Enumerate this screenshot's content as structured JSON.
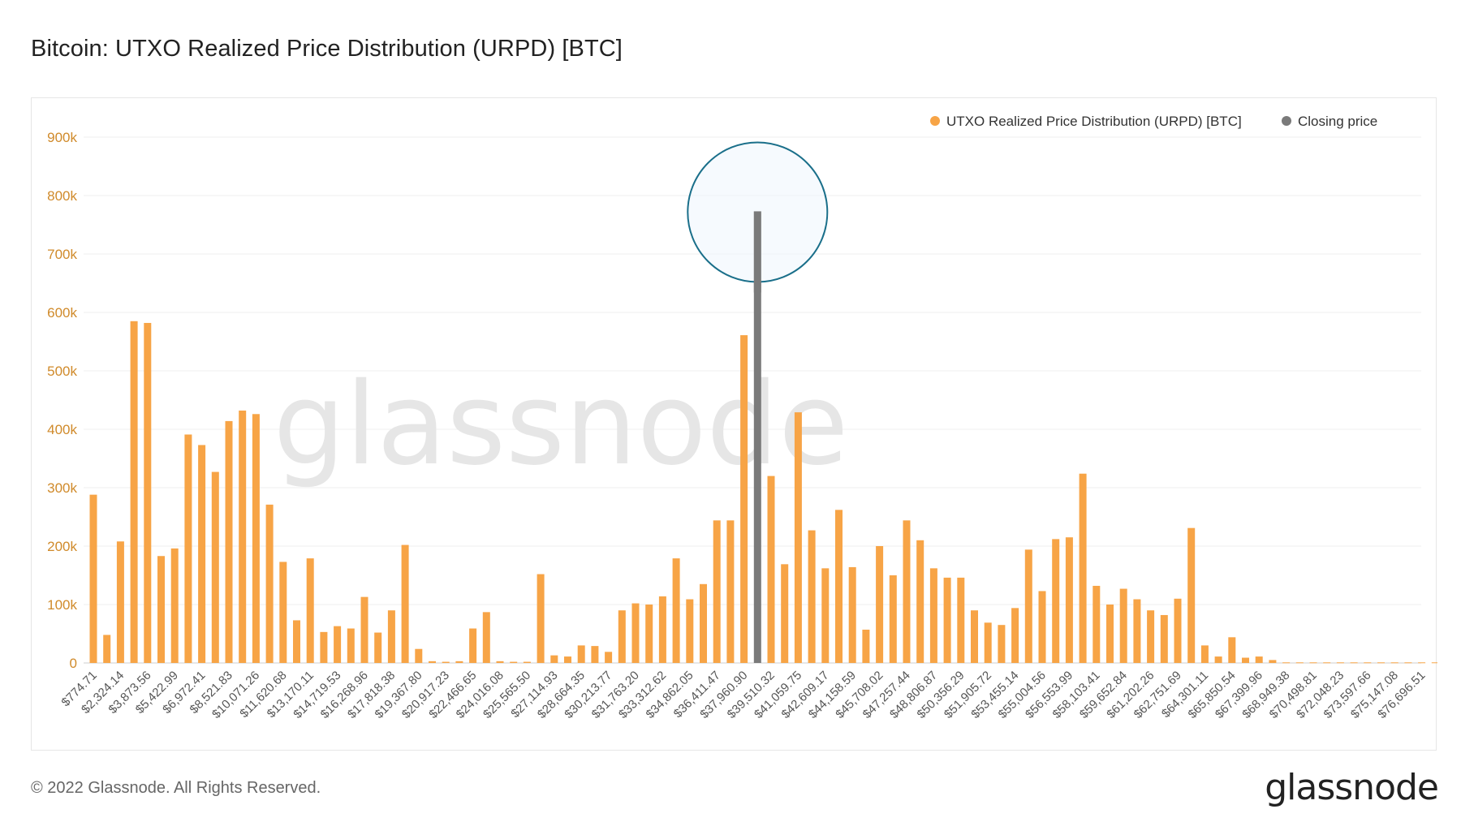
{
  "header": {
    "title": "Bitcoin: UTXO Realized Price Distribution (URPD) [BTC]"
  },
  "footer": {
    "copyright": "© 2022 Glassnode. All Rights Reserved.",
    "brand": "glassnode"
  },
  "watermark": "glassnode",
  "colors": {
    "bar": "#f7a446",
    "closing": "#7a7a7a",
    "circle": "#1a6f8a",
    "circle_fill": "#eef5fd"
  },
  "chart_data": {
    "type": "bar",
    "yticks": [
      "0",
      "100k",
      "200k",
      "300k",
      "400k",
      "500k",
      "600k",
      "700k",
      "800k",
      "900k"
    ],
    "ylim": [
      0,
      900000
    ],
    "grid": true,
    "legend_placement": "top-right",
    "series": [
      {
        "name": "UTXO Realized Price Distribution (URPD) [BTC]",
        "values": [
          288000,
          48000,
          208000,
          585000,
          582000,
          183000,
          196000,
          391000,
          373000,
          327000,
          414000,
          432000,
          426000,
          271000,
          173000,
          73000,
          179000,
          53000,
          63000,
          59000,
          113000,
          52000,
          90000,
          202000,
          24000,
          3000,
          2000,
          3000,
          59000,
          87000,
          3000,
          2000,
          2000,
          152000,
          13000,
          11000,
          30000,
          29000,
          19000,
          90000,
          102000,
          100000,
          114000,
          179000,
          109000,
          135000,
          244000,
          244000,
          561000,
          0,
          320000,
          169000,
          429000,
          227000,
          162000,
          262000,
          164000,
          57000,
          200000,
          150000,
          244000,
          210000,
          162000,
          146000,
          146000,
          90000,
          69000,
          65000,
          94000,
          194000,
          123000,
          212000,
          215000,
          324000,
          132000,
          100000,
          127000,
          109000,
          90000,
          82000,
          110000,
          231000,
          30000,
          11000,
          44000,
          9000,
          11000,
          5000,
          1000,
          1000,
          1000,
          1000,
          1000,
          1000,
          1000,
          1000,
          1000,
          1000,
          1000,
          1000,
          1000
        ]
      },
      {
        "name": "Closing price",
        "index": 49,
        "value": 773000
      }
    ],
    "xticks": [
      {
        "i": 0,
        "label": "$774.71"
      },
      {
        "i": 2,
        "label": "$2,324.14"
      },
      {
        "i": 4,
        "label": "$3,873.56"
      },
      {
        "i": 6,
        "label": "$5,422.99"
      },
      {
        "i": 8,
        "label": "$6,972.41"
      },
      {
        "i": 10,
        "label": "$8,521.83"
      },
      {
        "i": 12,
        "label": "$10,071.26"
      },
      {
        "i": 14,
        "label": "$11,620.68"
      },
      {
        "i": 16,
        "label": "$13,170.11"
      },
      {
        "i": 18,
        "label": "$14,719.53"
      },
      {
        "i": 20,
        "label": "$16,268.96"
      },
      {
        "i": 22,
        "label": "$17,818.38"
      },
      {
        "i": 24,
        "label": "$19,367.80"
      },
      {
        "i": 26,
        "label": "$20,917.23"
      },
      {
        "i": 28,
        "label": "$22,466.65"
      },
      {
        "i": 30,
        "label": "$24,016.08"
      },
      {
        "i": 32,
        "label": "$25,565.50"
      },
      {
        "i": 34,
        "label": "$27,114.93"
      },
      {
        "i": 36,
        "label": "$28,664.35"
      },
      {
        "i": 38,
        "label": "$30,213.77"
      },
      {
        "i": 40,
        "label": "$31,763.20"
      },
      {
        "i": 42,
        "label": "$33,312.62"
      },
      {
        "i": 44,
        "label": "$34,862.05"
      },
      {
        "i": 46,
        "label": "$36,411.47"
      },
      {
        "i": 48,
        "label": "$37,960.90"
      },
      {
        "i": 50,
        "label": "$39,510.32"
      },
      {
        "i": 52,
        "label": "$41,059.75"
      },
      {
        "i": 54,
        "label": "$42,609.17"
      },
      {
        "i": 56,
        "label": "$44,158.59"
      },
      {
        "i": 58,
        "label": "$45,708.02"
      },
      {
        "i": 60,
        "label": "$47,257.44"
      },
      {
        "i": 62,
        "label": "$48,806.87"
      },
      {
        "i": 64,
        "label": "$50,356.29"
      },
      {
        "i": 66,
        "label": "$51,905.72"
      },
      {
        "i": 68,
        "label": "$53,455.14"
      },
      {
        "i": 70,
        "label": "$55,004.56"
      },
      {
        "i": 72,
        "label": "$56,553.99"
      },
      {
        "i": 74,
        "label": "$58,103.41"
      },
      {
        "i": 76,
        "label": "$59,652.84"
      },
      {
        "i": 78,
        "label": "$61,202.26"
      },
      {
        "i": 80,
        "label": "$62,751.69"
      },
      {
        "i": 82,
        "label": "$64,301.11"
      },
      {
        "i": 84,
        "label": "$65,850.54"
      },
      {
        "i": 86,
        "label": "$67,399.96"
      },
      {
        "i": 88,
        "label": "$68,949.38"
      },
      {
        "i": 90,
        "label": "$70,498.81"
      },
      {
        "i": 92,
        "label": "$72,048.23"
      },
      {
        "i": 94,
        "label": "$73,597.66"
      },
      {
        "i": 96,
        "label": "$75,147.08"
      },
      {
        "i": 98,
        "label": "$76,696.51"
      }
    ],
    "annotation": {
      "type": "circle",
      "target": "Closing price"
    }
  }
}
